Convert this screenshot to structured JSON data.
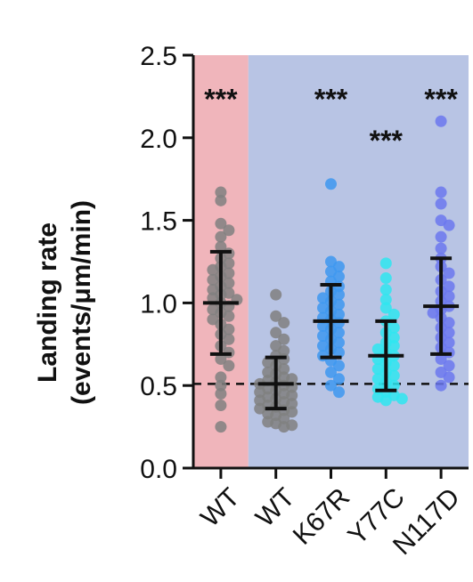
{
  "chart_data": {
    "type": "scatter",
    "subtype": "dot-plot with mean ± SD error bars",
    "ylabel_line1": "Landing rate",
    "ylabel_line2": "(events/μm/min)",
    "ylim": [
      0,
      2.5
    ],
    "yticks": [
      "0.0",
      "0.5",
      "1.0",
      "1.5",
      "2.0",
      "2.5"
    ],
    "ytick_values": [
      0,
      0.5,
      1.0,
      1.5,
      2.0,
      2.5
    ],
    "reference_line": 0.51,
    "reference_line_style": "dashed",
    "background_regions": [
      {
        "from_category": 0,
        "to_category": 0,
        "color": "#f0b5bb"
      },
      {
        "from_category": 1,
        "to_category": 4,
        "color": "#b8c4e4"
      }
    ],
    "categories": [
      "WT",
      "WT",
      "K67R",
      "Y77C",
      "N117D"
    ],
    "series": [
      {
        "category": "WT",
        "color": "#808080",
        "mean": 1.0,
        "sd_low": 0.69,
        "sd_high": 1.31,
        "significance": "***",
        "values": [
          1.67,
          1.62,
          1.48,
          1.44,
          1.4,
          1.34,
          1.3,
          1.27,
          1.24,
          1.22,
          1.2,
          1.18,
          1.16,
          1.14,
          1.12,
          1.1,
          1.08,
          1.06,
          1.05,
          1.03,
          1.02,
          1.0,
          0.98,
          0.96,
          0.94,
          0.92,
          0.9,
          0.87,
          0.84,
          0.81,
          0.78,
          0.74,
          0.7,
          0.66,
          0.62,
          0.55,
          0.5,
          0.45,
          0.38,
          0.25
        ]
      },
      {
        "category": "WT",
        "color": "#808080",
        "mean": 0.51,
        "sd_low": 0.36,
        "sd_high": 0.67,
        "significance": "",
        "values": [
          1.05,
          0.92,
          0.88,
          0.82,
          0.78,
          0.74,
          0.71,
          0.68,
          0.66,
          0.64,
          0.62,
          0.6,
          0.58,
          0.57,
          0.55,
          0.54,
          0.53,
          0.52,
          0.51,
          0.5,
          0.49,
          0.48,
          0.47,
          0.46,
          0.45,
          0.44,
          0.43,
          0.42,
          0.41,
          0.4,
          0.39,
          0.38,
          0.37,
          0.36,
          0.35,
          0.34,
          0.33,
          0.32,
          0.3,
          0.28,
          0.27,
          0.26,
          0.25
        ]
      },
      {
        "category": "K67R",
        "color": "#3d98f0",
        "mean": 0.89,
        "sd_low": 0.67,
        "sd_high": 1.11,
        "significance": "***",
        "values": [
          1.72,
          1.25,
          1.22,
          1.19,
          1.16,
          1.13,
          1.1,
          1.07,
          1.05,
          1.03,
          1.01,
          0.99,
          0.97,
          0.95,
          0.93,
          0.91,
          0.9,
          0.88,
          0.86,
          0.84,
          0.82,
          0.8,
          0.78,
          0.76,
          0.74,
          0.72,
          0.7,
          0.68,
          0.65,
          0.62,
          0.58,
          0.54,
          0.5,
          0.46
        ]
      },
      {
        "category": "Y77C",
        "color": "#2ee6f0",
        "mean": 0.68,
        "sd_low": 0.47,
        "sd_high": 0.89,
        "significance": "***",
        "values": [
          1.24,
          1.15,
          1.08,
          1.02,
          0.97,
          0.93,
          0.89,
          0.85,
          0.82,
          0.79,
          0.76,
          0.74,
          0.72,
          0.7,
          0.68,
          0.66,
          0.64,
          0.62,
          0.6,
          0.58,
          0.56,
          0.54,
          0.52,
          0.5,
          0.48,
          0.46,
          0.44,
          0.43,
          0.42,
          0.41
        ]
      },
      {
        "category": "N117D",
        "color": "#6b78ee",
        "mean": 0.98,
        "sd_low": 0.69,
        "sd_high": 1.27,
        "significance": "***",
        "values": [
          2.1,
          1.67,
          1.6,
          1.5,
          1.47,
          1.4,
          1.33,
          1.27,
          1.22,
          1.18,
          1.14,
          1.1,
          1.07,
          1.04,
          1.01,
          0.98,
          0.96,
          0.94,
          0.91,
          0.88,
          0.85,
          0.82,
          0.79,
          0.76,
          0.73,
          0.7,
          0.66,
          0.62,
          0.58,
          0.55,
          0.5
        ]
      }
    ]
  }
}
